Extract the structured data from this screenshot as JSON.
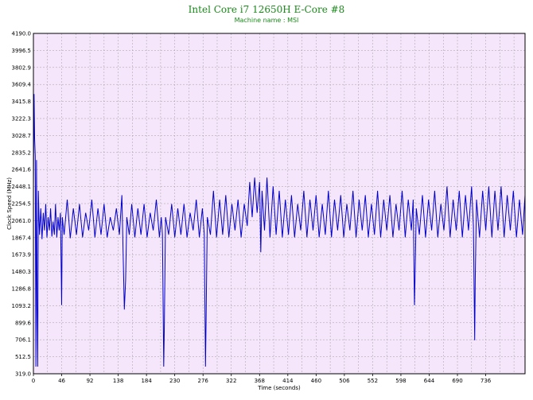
{
  "chart_data": {
    "type": "line",
    "title": "Intel Core i7 12650H E-Core #8",
    "subtitle": "Machine name : MSI",
    "xlabel": "Time (seconds)",
    "ylabel": "Clock Speed (MHz)",
    "xlim": [
      0,
      800
    ],
    "ylim": [
      319.0,
      4190.0
    ],
    "x_ticks": [
      "0",
      "46",
      "92",
      "138",
      "184",
      "230",
      "276",
      "322",
      "368",
      "414",
      "460",
      "506",
      "552",
      "598",
      "644",
      "690",
      "736"
    ],
    "x_tick_values": [
      0,
      46,
      92,
      138,
      184,
      230,
      276,
      322,
      368,
      414,
      460,
      506,
      552,
      598,
      644,
      690,
      736
    ],
    "y_ticks": [
      "4190.0",
      "3996.5",
      "3802.9",
      "3609.4",
      "3415.8",
      "3222.3",
      "3028.7",
      "2835.2",
      "2641.6",
      "2448.1",
      "2254.5",
      "2061.0",
      "1867.4",
      "1673.9",
      "1480.3",
      "1286.8",
      "1093.2",
      "899.6",
      "706.1",
      "512.5",
      "319.0"
    ],
    "grid": true,
    "colors": {
      "background": "#f5e6fb",
      "grid": "#a0a0a0",
      "line": "#0000cc",
      "title": "#1a8a1a"
    },
    "series": [
      {
        "values": [
          [
            0,
            2450
          ],
          [
            1,
            3500
          ],
          [
            2,
            3000
          ],
          [
            3,
            2800
          ],
          [
            4,
            400
          ],
          [
            5,
            2750
          ],
          [
            6,
            1100
          ],
          [
            7,
            400
          ],
          [
            8,
            2400
          ],
          [
            9,
            2100
          ],
          [
            10,
            1900
          ],
          [
            12,
            2200
          ],
          [
            14,
            1850
          ],
          [
            16,
            2150
          ],
          [
            18,
            1950
          ],
          [
            20,
            2250
          ],
          [
            22,
            1870
          ],
          [
            24,
            2100
          ],
          [
            26,
            1950
          ],
          [
            28,
            2200
          ],
          [
            30,
            1880
          ],
          [
            32,
            2050
          ],
          [
            34,
            1900
          ],
          [
            36,
            2250
          ],
          [
            38,
            1870
          ],
          [
            40,
            2100
          ],
          [
            42,
            1950
          ],
          [
            44,
            2150
          ],
          [
            46,
            1100
          ],
          [
            47,
            2100
          ],
          [
            50,
            1900
          ],
          [
            55,
            2300
          ],
          [
            60,
            1860
          ],
          [
            65,
            2200
          ],
          [
            70,
            1900
          ],
          [
            75,
            2250
          ],
          [
            80,
            1870
          ],
          [
            85,
            2150
          ],
          [
            90,
            1950
          ],
          [
            95,
            2300
          ],
          [
            100,
            1870
          ],
          [
            105,
            2200
          ],
          [
            110,
            1900
          ],
          [
            115,
            2250
          ],
          [
            120,
            1870
          ],
          [
            125,
            2100
          ],
          [
            130,
            1950
          ],
          [
            135,
            2200
          ],
          [
            140,
            1900
          ],
          [
            144,
            2350
          ],
          [
            148,
            1050
          ],
          [
            150,
            1380
          ],
          [
            152,
            2100
          ],
          [
            156,
            1900
          ],
          [
            160,
            2250
          ],
          [
            165,
            1870
          ],
          [
            170,
            2200
          ],
          [
            175,
            1900
          ],
          [
            180,
            2250
          ],
          [
            185,
            1870
          ],
          [
            190,
            2150
          ],
          [
            195,
            1950
          ],
          [
            200,
            2300
          ],
          [
            205,
            1870
          ],
          [
            208,
            2100
          ],
          [
            210,
            1900
          ],
          [
            212,
            400
          ],
          [
            213,
            800
          ],
          [
            215,
            2100
          ],
          [
            220,
            1900
          ],
          [
            225,
            2250
          ],
          [
            230,
            1870
          ],
          [
            235,
            2200
          ],
          [
            240,
            1900
          ],
          [
            245,
            2250
          ],
          [
            250,
            1870
          ],
          [
            255,
            2150
          ],
          [
            260,
            1950
          ],
          [
            265,
            2300
          ],
          [
            270,
            1870
          ],
          [
            275,
            2200
          ],
          [
            278,
            1900
          ],
          [
            280,
            400
          ],
          [
            281,
            950
          ],
          [
            283,
            2100
          ],
          [
            288,
            1900
          ],
          [
            293,
            2400
          ],
          [
            298,
            1870
          ],
          [
            303,
            2300
          ],
          [
            308,
            1900
          ],
          [
            313,
            2350
          ],
          [
            318,
            1870
          ],
          [
            323,
            2250
          ],
          [
            328,
            1950
          ],
          [
            333,
            2300
          ],
          [
            338,
            1870
          ],
          [
            343,
            2250
          ],
          [
            348,
            2000
          ],
          [
            352,
            2500
          ],
          [
            356,
            2100
          ],
          [
            360,
            2550
          ],
          [
            364,
            2150
          ],
          [
            368,
            2500
          ],
          [
            370,
            1700
          ],
          [
            372,
            2400
          ],
          [
            376,
            1950
          ],
          [
            380,
            2550
          ],
          [
            385,
            1870
          ],
          [
            390,
            2450
          ],
          [
            395,
            1900
          ],
          [
            400,
            2400
          ],
          [
            405,
            1870
          ],
          [
            410,
            2300
          ],
          [
            415,
            1900
          ],
          [
            420,
            2350
          ],
          [
            425,
            1870
          ],
          [
            430,
            2250
          ],
          [
            435,
            1950
          ],
          [
            440,
            2400
          ],
          [
            445,
            1870
          ],
          [
            450,
            2300
          ],
          [
            455,
            1950
          ],
          [
            460,
            2350
          ],
          [
            465,
            1870
          ],
          [
            470,
            2250
          ],
          [
            475,
            1900
          ],
          [
            480,
            2400
          ],
          [
            485,
            1870
          ],
          [
            490,
            2300
          ],
          [
            495,
            1950
          ],
          [
            500,
            2350
          ],
          [
            505,
            1870
          ],
          [
            510,
            2250
          ],
          [
            515,
            1950
          ],
          [
            520,
            2400
          ],
          [
            525,
            1870
          ],
          [
            530,
            2300
          ],
          [
            535,
            1950
          ],
          [
            540,
            2350
          ],
          [
            545,
            1870
          ],
          [
            550,
            2250
          ],
          [
            555,
            1900
          ],
          [
            560,
            2400
          ],
          [
            565,
            1870
          ],
          [
            570,
            2300
          ],
          [
            575,
            1950
          ],
          [
            580,
            2350
          ],
          [
            585,
            1870
          ],
          [
            590,
            2250
          ],
          [
            595,
            1950
          ],
          [
            600,
            2400
          ],
          [
            605,
            1870
          ],
          [
            610,
            2300
          ],
          [
            615,
            1950
          ],
          [
            618,
            2300
          ],
          [
            620,
            1100
          ],
          [
            621,
            1400
          ],
          [
            623,
            2200
          ],
          [
            628,
            1900
          ],
          [
            633,
            2350
          ],
          [
            638,
            1870
          ],
          [
            643,
            2300
          ],
          [
            648,
            1950
          ],
          [
            653,
            2400
          ],
          [
            658,
            1870
          ],
          [
            663,
            2250
          ],
          [
            668,
            1950
          ],
          [
            673,
            2450
          ],
          [
            678,
            1870
          ],
          [
            683,
            2300
          ],
          [
            688,
            1950
          ],
          [
            693,
            2400
          ],
          [
            698,
            1870
          ],
          [
            703,
            2350
          ],
          [
            708,
            1950
          ],
          [
            713,
            2450
          ],
          [
            716,
            2000
          ],
          [
            718,
            700
          ],
          [
            719,
            1400
          ],
          [
            721,
            2300
          ],
          [
            726,
            1870
          ],
          [
            731,
            2400
          ],
          [
            736,
            1950
          ],
          [
            741,
            2450
          ],
          [
            746,
            1870
          ],
          [
            751,
            2400
          ],
          [
            756,
            1950
          ],
          [
            761,
            2450
          ],
          [
            766,
            1870
          ],
          [
            771,
            2350
          ],
          [
            776,
            1950
          ],
          [
            781,
            2400
          ],
          [
            786,
            1870
          ],
          [
            791,
            2300
          ],
          [
            796,
            1900
          ],
          [
            800,
            2350
          ]
        ]
      }
    ]
  }
}
